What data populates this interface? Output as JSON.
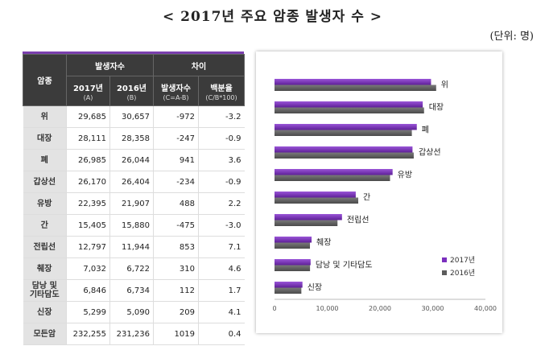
{
  "title": "< 2017년 주요 암종 발생자 수 >",
  "unit": "(단위:  명)",
  "table": {
    "header": {
      "cancer": "암종",
      "group1": "발생자수",
      "group2": "차이",
      "col_2017": "2017년",
      "col_2017_sub": "(A)",
      "col_2016": "2016년",
      "col_2016_sub": "(B)",
      "col_diff": "발생자수",
      "col_diff_sub": "(C=A-B)",
      "col_pct": "백분율",
      "col_pct_sub": "(C/B*100)"
    },
    "rows": [
      {
        "name": "위",
        "y2017": "29,685",
        "y2016": "30,657",
        "diff": "-972",
        "pct": "-3.2"
      },
      {
        "name": "대장",
        "y2017": "28,111",
        "y2016": "28,358",
        "diff": "-247",
        "pct": "-0.9"
      },
      {
        "name": "폐",
        "y2017": "26,985",
        "y2016": "26,044",
        "diff": "941",
        "pct": "3.6"
      },
      {
        "name": "갑상선",
        "y2017": "26,170",
        "y2016": "26,404",
        "diff": "-234",
        "pct": "-0.9"
      },
      {
        "name": "유방",
        "y2017": "22,395",
        "y2016": "21,907",
        "diff": "488",
        "pct": "2.2"
      },
      {
        "name": "간",
        "y2017": "15,405",
        "y2016": "15,880",
        "diff": "-475",
        "pct": "-3.0"
      },
      {
        "name": "전립선",
        "y2017": "12,797",
        "y2016": "11,944",
        "diff": "853",
        "pct": "7.1"
      },
      {
        "name": "췌장",
        "y2017": "7,032",
        "y2016": "6,722",
        "diff": "310",
        "pct": "4.6"
      },
      {
        "name": "담낭 및\n기타담도",
        "y2017": "6,846",
        "y2016": "6,734",
        "diff": "112",
        "pct": "1.7"
      },
      {
        "name": "신장",
        "y2017": "5,299",
        "y2016": "5,090",
        "diff": "209",
        "pct": "4.1"
      },
      {
        "name": "모든암",
        "y2017": "232,255",
        "y2016": "231,236",
        "diff": "1019",
        "pct": "0.4"
      }
    ]
  },
  "chart_data": {
    "type": "bar",
    "orientation": "horizontal",
    "categories": [
      "위",
      "대장",
      "폐",
      "갑상선",
      "유방",
      "간",
      "전립선",
      "췌장",
      "담낭 및 기타담도",
      "신장"
    ],
    "series": [
      {
        "name": "2017년",
        "values": [
          29685,
          28111,
          26985,
          26170,
          22395,
          15405,
          12797,
          7032,
          6846,
          5299
        ],
        "color": "#7b2fbe"
      },
      {
        "name": "2016년",
        "values": [
          30657,
          28358,
          26044,
          26404,
          21907,
          15880,
          11944,
          6722,
          6734,
          5090
        ],
        "color": "#5c5c5c"
      }
    ],
    "xlim": [
      0,
      40000
    ],
    "xticks": [
      "0",
      "10,000",
      "20,000",
      "30,000",
      "40,000"
    ],
    "legend": "bottom-right",
    "grid": false
  }
}
